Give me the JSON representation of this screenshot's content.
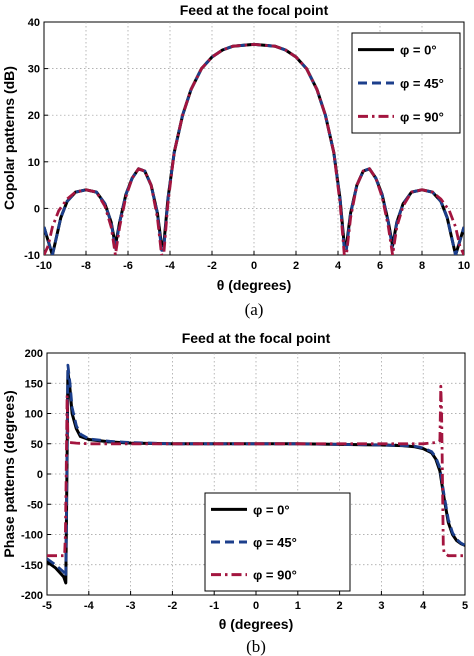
{
  "chart_data": [
    {
      "type": "line",
      "panel_caption": "(a)",
      "title": "Feed at the focal point",
      "xlabel": "θ (degrees)",
      "ylabel": "Copolar patterns (dB)",
      "xlim": [
        -10,
        10
      ],
      "ylim": [
        -10,
        40
      ],
      "xticks": [
        -10,
        -8,
        -6,
        -4,
        -2,
        0,
        2,
        4,
        6,
        8,
        10
      ],
      "yticks": [
        -10,
        0,
        10,
        20,
        30,
        40
      ],
      "grid": true,
      "legend_position": "top-right",
      "series": [
        {
          "name": "φ = 0°",
          "color": "#000000",
          "style": "solid",
          "x": [
            -10,
            -9.6,
            -9.4,
            -9.2,
            -8.9,
            -8.5,
            -8.0,
            -7.5,
            -7.1,
            -6.8,
            -6.6,
            -6.4,
            -6.1,
            -5.8,
            -5.5,
            -5.2,
            -4.9,
            -4.6,
            -4.4,
            -4.3,
            -4.1,
            -3.8,
            -3.4,
            -3.0,
            -2.5,
            -2.0,
            -1.5,
            -1.0,
            -0.5,
            0,
            0.5,
            1.0,
            1.5,
            2.0,
            2.5,
            3.0,
            3.4,
            3.8,
            4.1,
            4.3,
            4.4,
            4.6,
            4.9,
            5.2,
            5.5,
            5.8,
            6.1,
            6.4,
            6.6,
            6.8,
            7.1,
            7.5,
            8.0,
            8.5,
            8.9,
            9.2,
            9.4,
            9.6,
            10
          ],
          "y": [
            -4,
            -10,
            -6,
            -2,
            1.5,
            3.5,
            4,
            3.5,
            1,
            -3,
            -8,
            -3,
            3,
            6.5,
            8.5,
            8,
            5,
            -1,
            -8,
            -8,
            2,
            12,
            20,
            25.5,
            30,
            32.5,
            34,
            34.8,
            35,
            35.2,
            35,
            34.8,
            34,
            32.5,
            30,
            25.5,
            20,
            12,
            2,
            -8,
            -8,
            -1,
            5,
            8,
            8.5,
            6.5,
            3,
            -3,
            -8,
            -3,
            1,
            3.5,
            4,
            3.5,
            1.5,
            -2,
            -6,
            -10,
            -4
          ]
        },
        {
          "name": "φ = 45°",
          "color": "#1c3f8c",
          "style": "dashed",
          "x": [
            -10,
            -9.6,
            -9.4,
            -9.2,
            -8.9,
            -8.5,
            -8.0,
            -7.5,
            -7.1,
            -6.8,
            -6.6,
            -6.4,
            -6.1,
            -5.8,
            -5.5,
            -5.2,
            -4.9,
            -4.6,
            -4.4,
            -4.3,
            -4.1,
            -3.8,
            -3.4,
            -3.0,
            -2.5,
            -2.0,
            -1.5,
            -1.0,
            -0.5,
            0,
            0.5,
            1.0,
            1.5,
            2.0,
            2.5,
            3.0,
            3.4,
            3.8,
            4.1,
            4.3,
            4.4,
            4.6,
            4.9,
            5.2,
            5.5,
            5.8,
            6.1,
            6.4,
            6.6,
            6.8,
            7.1,
            7.5,
            8.0,
            8.5,
            8.9,
            9.2,
            9.4,
            9.6,
            10
          ],
          "y": [
            -4,
            -10,
            -6,
            -2,
            1.5,
            3.5,
            4,
            3.5,
            1,
            -3,
            -9,
            -3,
            3,
            6.5,
            8.5,
            8,
            5,
            -1,
            -9,
            -9,
            2,
            12,
            20,
            25.5,
            30,
            32.5,
            34,
            34.8,
            35,
            35.2,
            35,
            34.8,
            34,
            32.5,
            30,
            25.5,
            20,
            12,
            2,
            -9,
            -9,
            -1,
            5,
            8,
            8.5,
            6.5,
            3,
            -3,
            -9,
            -3,
            1,
            3.5,
            4,
            3.5,
            1.5,
            -2,
            -6,
            -10,
            -4
          ]
        },
        {
          "name": "φ = 90°",
          "color": "#a3153f",
          "style": "dashdot",
          "x": [
            -10,
            -9.8,
            -9.6,
            -9.3,
            -8.9,
            -8.5,
            -8.0,
            -7.5,
            -7.1,
            -6.8,
            -6.6,
            -6.4,
            -6.1,
            -5.8,
            -5.5,
            -5.2,
            -4.9,
            -4.6,
            -4.4,
            -4.3,
            -4.1,
            -3.8,
            -3.4,
            -3.0,
            -2.5,
            -2.0,
            -1.5,
            -1.0,
            -0.5,
            0,
            0.5,
            1.0,
            1.5,
            2.0,
            2.5,
            3.0,
            3.4,
            3.8,
            4.1,
            4.3,
            4.4,
            4.6,
            4.9,
            5.2,
            5.5,
            5.8,
            6.1,
            6.4,
            6.6,
            6.8,
            7.1,
            7.5,
            8.0,
            8.5,
            8.9,
            9.3,
            9.6,
            9.8,
            10
          ],
          "y": [
            -10,
            -8,
            -4,
            -0.5,
            2,
            3.5,
            4,
            3.5,
            0.5,
            -4,
            -10,
            -4,
            2.5,
            6.5,
            8.5,
            8,
            5,
            -2,
            -10,
            -10,
            1,
            12,
            20,
            25.5,
            30,
            32.5,
            34,
            34.8,
            35,
            35.2,
            35,
            34.8,
            34,
            32.5,
            30,
            25.5,
            20,
            12,
            1,
            -10,
            -10,
            -2,
            5,
            8,
            8.5,
            6.5,
            2.5,
            -4,
            -10,
            -4,
            0.5,
            3.5,
            4,
            3.5,
            2,
            -0.5,
            -4,
            -8,
            -10
          ]
        }
      ]
    },
    {
      "type": "line",
      "panel_caption": "(b)",
      "title": "Feed at the focal point",
      "xlabel": "θ (degrees)",
      "ylabel": "Phase patterns (degrees)",
      "xlim": [
        -5,
        5
      ],
      "ylim": [
        -200,
        200
      ],
      "xticks": [
        -5,
        -4,
        -3,
        -2,
        -1,
        0,
        1,
        2,
        3,
        4,
        5
      ],
      "yticks": [
        -200,
        -150,
        -100,
        -50,
        0,
        50,
        100,
        150,
        200
      ],
      "grid": true,
      "legend_position": "bottom-center",
      "series": [
        {
          "name": "φ = 0°",
          "color": "#000000",
          "style": "solid",
          "x": [
            -5,
            -4.8,
            -4.6,
            -4.55,
            -4.52,
            -4.5,
            -4.45,
            -4.4,
            -4.3,
            -4.2,
            -4.0,
            -3.5,
            -3.0,
            -2.0,
            -1.0,
            0,
            1.0,
            2.0,
            3.0,
            3.5,
            3.8,
            4.0,
            4.2,
            4.3,
            4.4,
            4.5,
            4.6,
            4.7,
            4.8,
            4.9,
            5
          ],
          "y": [
            -145,
            -155,
            -170,
            -180,
            30,
            170,
            140,
            100,
            75,
            62,
            57,
            53,
            51,
            50,
            50,
            50,
            50,
            49,
            48,
            47,
            45,
            42,
            35,
            25,
            5,
            -40,
            -80,
            -100,
            -110,
            -115,
            -118
          ]
        },
        {
          "name": "φ = 45°",
          "color": "#1c3f8c",
          "style": "dashed",
          "x": [
            -5,
            -4.8,
            -4.6,
            -4.55,
            -4.52,
            -4.5,
            -4.45,
            -4.4,
            -4.3,
            -4.2,
            -4.0,
            -3.5,
            -3.0,
            -2.0,
            -1.0,
            0,
            1.0,
            2.0,
            3.0,
            3.5,
            3.8,
            4.0,
            4.2,
            4.3,
            4.4,
            4.5,
            4.6,
            4.7,
            4.8,
            4.9,
            5
          ],
          "y": [
            -140,
            -150,
            -162,
            -170,
            40,
            180,
            150,
            110,
            80,
            66,
            58,
            54,
            52,
            50,
            50,
            50,
            50,
            49,
            48,
            47,
            46,
            43,
            37,
            28,
            10,
            -35,
            -75,
            -97,
            -108,
            -114,
            -118
          ]
        },
        {
          "name": "φ = 90°",
          "color": "#a3153f",
          "style": "dashdot",
          "x": [
            -5,
            -4.9,
            -4.7,
            -4.58,
            -4.56,
            -4.54,
            -4.52,
            -4.5,
            -4.45,
            -4.3,
            -4.0,
            -3.0,
            -2.0,
            -1.0,
            0,
            1.0,
            2.0,
            3.0,
            4.0,
            4.3,
            4.4,
            4.42,
            4.44,
            4.46,
            4.48,
            4.5,
            4.6,
            4.8,
            5
          ],
          "y": [
            -135,
            -135,
            -135,
            -135,
            -100,
            0,
            130,
            60,
            52,
            51,
            50,
            50,
            50,
            50,
            50,
            50,
            50,
            50,
            50,
            52,
            55,
            145,
            100,
            0,
            -120,
            -130,
            -135,
            -135,
            -135
          ]
        }
      ]
    }
  ]
}
